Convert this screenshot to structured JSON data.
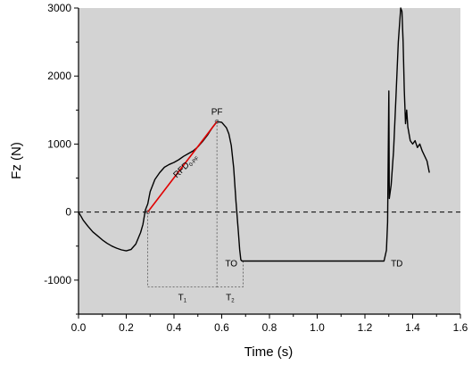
{
  "chart_data": {
    "type": "line",
    "xlabel": "Time (s)",
    "ylabel": "Fz (N)",
    "xlim": [
      0,
      1.6
    ],
    "ylim": [
      -1500,
      3000
    ],
    "x_ticks": [
      0.0,
      0.2,
      0.4,
      0.6,
      0.8,
      1.0,
      1.2,
      1.4,
      1.6
    ],
    "x_tick_labels": [
      "0.0",
      "0.2",
      "0.4",
      "0.6",
      "0.8",
      "1.0",
      "1.2",
      "1.4",
      "1.6"
    ],
    "y_ticks": [
      -1000,
      0,
      1000,
      2000,
      3000
    ],
    "y_tick_labels": [
      "-1000",
      "0",
      "1000",
      "2000",
      "3000"
    ],
    "background": "#d3d3d3",
    "grid": false,
    "zero_line": {
      "y": 0,
      "style": "dashed"
    },
    "series": [
      {
        "color": "#000000",
        "points": [
          [
            0.0,
            0
          ],
          [
            0.01,
            -60
          ],
          [
            0.02,
            -120
          ],
          [
            0.04,
            -210
          ],
          [
            0.06,
            -290
          ],
          [
            0.08,
            -350
          ],
          [
            0.1,
            -410
          ],
          [
            0.12,
            -460
          ],
          [
            0.14,
            -500
          ],
          [
            0.16,
            -530
          ],
          [
            0.18,
            -555
          ],
          [
            0.2,
            -570
          ],
          [
            0.22,
            -550
          ],
          [
            0.24,
            -470
          ],
          [
            0.26,
            -300
          ],
          [
            0.27,
            -180
          ],
          [
            0.28,
            30
          ],
          [
            0.29,
            120
          ],
          [
            0.3,
            300
          ],
          [
            0.32,
            480
          ],
          [
            0.34,
            580
          ],
          [
            0.36,
            660
          ],
          [
            0.38,
            700
          ],
          [
            0.4,
            730
          ],
          [
            0.42,
            770
          ],
          [
            0.44,
            820
          ],
          [
            0.46,
            860
          ],
          [
            0.48,
            900
          ],
          [
            0.5,
            960
          ],
          [
            0.52,
            1040
          ],
          [
            0.54,
            1130
          ],
          [
            0.56,
            1240
          ],
          [
            0.58,
            1330
          ],
          [
            0.6,
            1320
          ],
          [
            0.62,
            1240
          ],
          [
            0.63,
            1150
          ],
          [
            0.64,
            980
          ],
          [
            0.65,
            650
          ],
          [
            0.66,
            150
          ],
          [
            0.67,
            -300
          ],
          [
            0.675,
            -550
          ],
          [
            0.68,
            -700
          ],
          [
            0.685,
            -720
          ],
          [
            0.7,
            -720
          ],
          [
            0.9,
            -720
          ],
          [
            1.1,
            -720
          ],
          [
            1.28,
            -720
          ],
          [
            1.29,
            -560
          ],
          [
            1.295,
            -150
          ],
          [
            1.3,
            1780
          ],
          [
            1.302,
            200
          ],
          [
            1.31,
            400
          ],
          [
            1.32,
            900
          ],
          [
            1.33,
            1700
          ],
          [
            1.34,
            2500
          ],
          [
            1.35,
            3000
          ],
          [
            1.355,
            2950
          ],
          [
            1.36,
            2500
          ],
          [
            1.365,
            1800
          ],
          [
            1.37,
            1300
          ],
          [
            1.375,
            1500
          ],
          [
            1.38,
            1250
          ],
          [
            1.39,
            1050
          ],
          [
            1.4,
            1000
          ],
          [
            1.41,
            1050
          ],
          [
            1.42,
            950
          ],
          [
            1.43,
            1000
          ],
          [
            1.44,
            900
          ],
          [
            1.46,
            750
          ],
          [
            1.47,
            580
          ]
        ]
      }
    ],
    "rfd_line": {
      "label": "RFD",
      "label_subscript": "0-PF",
      "color": "#e00000",
      "x": [
        0.29,
        0.58
      ],
      "y": [
        0,
        1330
      ]
    },
    "annotations": [
      {
        "text": "PF",
        "x": 0.58,
        "y": 1330
      },
      {
        "text": "TO",
        "x": 0.685,
        "y": -720
      },
      {
        "text": "TD",
        "x": 1.29,
        "y": -720
      }
    ],
    "intervals": [
      {
        "label": "T",
        "subscript": "1",
        "x_start": 0.29,
        "x_end": 0.58,
        "y": -1100
      },
      {
        "label": "T",
        "subscript": "2",
        "x_start": 0.58,
        "x_end": 0.69,
        "y": -1100
      }
    ]
  }
}
